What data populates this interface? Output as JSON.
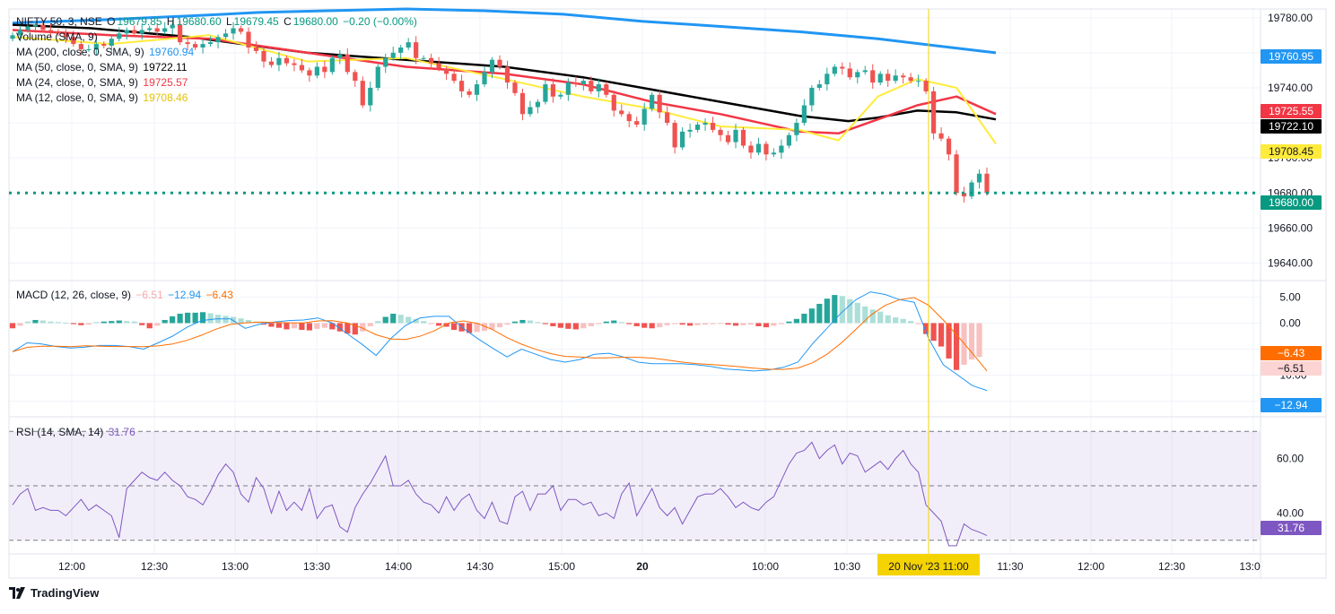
{
  "colors": {
    "up": "#26a69a",
    "down": "#ef5350",
    "ma200": "#2196f3",
    "ma50": "#000000",
    "ma24": "#f23645",
    "ma12": "#ffeb3b",
    "macd": "#2196f3",
    "signal": "#ff6d00",
    "rsi": "#7e57c2",
    "last": "#089981",
    "cursor": "#f5d300",
    "grid": "#f0f3fa"
  },
  "header": {
    "symbol": "NIFTY 50, 3, NSE",
    "o_label": "O",
    "o": "19679.85",
    "h_label": "H",
    "h": "19680.60",
    "l_label": "L",
    "l": "19679.45",
    "c_label": "C",
    "c": "19680.00",
    "chg": "−0.20 (−0.00%)"
  },
  "indicators": {
    "volume": "Volume (SMA, 9)",
    "ma200_label": "MA (200, close, 0, SMA, 9)",
    "ma200_value": "19760.94",
    "ma50_label": "MA (50, close, 0, SMA, 9)",
    "ma50_value": "19722.11",
    "ma24_label": "MA (24, close, 0, SMA, 9)",
    "ma24_value": "19725.57",
    "ma12_label": "MA (12, close, 0, SMA, 9)",
    "ma12_value": "19708.46",
    "macd_label": "MACD (12, 26, close, 9)",
    "macd_hist": "−6.51",
    "macd_macd": "−12.94",
    "macd_signal": "−6.43",
    "rsi_label": "RSI (14, SMA, 14)",
    "rsi_value": "31.76"
  },
  "brand": "TradingView",
  "chart_data": {
    "type": "candlestick",
    "symbol": "NIFTY 50",
    "interval": "3",
    "exchange": "NSE",
    "price_axis": {
      "ylim": [
        19630,
        19785
      ],
      "ticks": [
        "19780.00",
        "19740.00",
        "19700.00",
        "19680.00",
        "19660.00",
        "19640.00"
      ]
    },
    "time_axis": {
      "ticks": [
        "12:00",
        "12:30",
        "13:00",
        "13:30",
        "14:00",
        "14:30",
        "15:00",
        "20",
        "10:00",
        "10:30",
        "11:00",
        "11:30",
        "12:00",
        "12:30",
        "13:0"
      ],
      "cursor_label": "20 Nov '23  11:00"
    },
    "price_labels": {
      "ma200": "19760.95",
      "ma24": "19725.55",
      "ma50": "19722.10",
      "ma12": "19708.45",
      "last": "19680.00"
    },
    "last_price": 19680.0,
    "close": [
      19770,
      19773,
      19775,
      19776,
      19773,
      19772,
      19771,
      19769,
      19765,
      19762,
      19762,
      19765,
      19764,
      19768,
      19771,
      19773,
      19771,
      19773,
      19774,
      19772,
      19774,
      19776,
      19766,
      19765,
      19763,
      19765,
      19766,
      19769,
      19771,
      19774,
      19772,
      19763,
      19761,
      19755,
      19753,
      19757,
      19754,
      19753,
      19750,
      19747,
      19752,
      19749,
      19757,
      19759,
      19749,
      19744,
      19730,
      19740,
      19752,
      19757,
      19760,
      19763,
      19766,
      19757,
      19757,
      19754,
      19751,
      19748,
      19744,
      19738,
      19736,
      19742,
      19749,
      19756,
      19752,
      19743,
      19737,
      19725,
      19729,
      19732,
      19742,
      19735,
      19736,
      19743,
      19742,
      19744,
      19738,
      19742,
      19736,
      19727,
      19725,
      19721,
      19719,
      19728,
      19736,
      19726,
      19720,
      19706,
      19715,
      19716,
      19719,
      19720,
      19716,
      19713,
      19709,
      19716,
      19707,
      19703,
      19708,
      19702,
      19703,
      19707,
      19713,
      19720,
      19730,
      19740,
      19742,
      19748,
      19752,
      19751,
      19746,
      19749,
      19750,
      19743,
      19748,
      19744,
      19747,
      19746,
      19744,
      19744,
      19738,
      19714,
      19711,
      19702,
      19680,
      19678,
      19686,
      19691,
      19680
    ],
    "moving_averages": [
      {
        "name": "MA 200",
        "label": "19760.94",
        "points": [
          [
            0,
            19777
          ],
          [
            0.1,
            19779
          ],
          [
            0.18,
            19781
          ],
          [
            0.25,
            19783
          ],
          [
            0.32,
            19784
          ],
          [
            0.4,
            19785
          ],
          [
            0.48,
            19784
          ],
          [
            0.56,
            19782
          ],
          [
            0.64,
            19778
          ],
          [
            0.72,
            19775
          ],
          [
            0.8,
            19772
          ],
          [
            0.88,
            19768
          ],
          [
            0.94,
            19764
          ],
          [
            1,
            19760
          ]
        ]
      },
      {
        "name": "MA 50",
        "label": "19722.11",
        "points": [
          [
            0,
            19776
          ],
          [
            0.08,
            19774
          ],
          [
            0.18,
            19769
          ],
          [
            0.3,
            19760
          ],
          [
            0.4,
            19756
          ],
          [
            0.5,
            19752
          ],
          [
            0.58,
            19746
          ],
          [
            0.65,
            19739
          ],
          [
            0.72,
            19732
          ],
          [
            0.8,
            19724
          ],
          [
            0.85,
            19721
          ],
          [
            0.88,
            19723
          ],
          [
            0.92,
            19727
          ],
          [
            0.96,
            19726
          ],
          [
            1,
            19722
          ]
        ]
      },
      {
        "name": "MA 24",
        "label": "19725.57",
        "points": [
          [
            0,
            19773
          ],
          [
            0.1,
            19770
          ],
          [
            0.2,
            19768
          ],
          [
            0.3,
            19760
          ],
          [
            0.4,
            19752
          ],
          [
            0.5,
            19748
          ],
          [
            0.58,
            19742
          ],
          [
            0.65,
            19732
          ],
          [
            0.72,
            19725
          ],
          [
            0.8,
            19715
          ],
          [
            0.84,
            19714
          ],
          [
            0.88,
            19722
          ],
          [
            0.92,
            19730
          ],
          [
            0.96,
            19735
          ],
          [
            1,
            19725
          ]
        ]
      },
      {
        "name": "MA 12",
        "label": "19708.46",
        "points": [
          [
            0,
            19769
          ],
          [
            0.1,
            19765
          ],
          [
            0.2,
            19770
          ],
          [
            0.3,
            19755
          ],
          [
            0.4,
            19757
          ],
          [
            0.5,
            19745
          ],
          [
            0.58,
            19735
          ],
          [
            0.65,
            19728
          ],
          [
            0.72,
            19718
          ],
          [
            0.8,
            19716
          ],
          [
            0.84,
            19710
          ],
          [
            0.88,
            19735
          ],
          [
            0.92,
            19745
          ],
          [
            0.96,
            19740
          ],
          [
            1,
            19708
          ]
        ]
      }
    ],
    "macd": {
      "ylim": [
        -18,
        8
      ],
      "ticks": [
        "5.00",
        "0.00",
        "−10.00"
      ],
      "labels": {
        "signal": "−6.43",
        "hist": "−6.51",
        "macd": "−12.94"
      },
      "histogram": [
        -1,
        -0.5,
        0.3,
        0.6,
        0.5,
        0.3,
        0.2,
        0.1,
        -0.2,
        -0.4,
        -0.3,
        0.2,
        0.3,
        0.4,
        0.5,
        0.4,
        0.3,
        -0.4,
        -1.0,
        -0.5,
        0.6,
        1.3,
        1.8,
        2.0,
        2.0,
        2.1,
        1.9,
        1.6,
        1.4,
        1.2,
        0.9,
        0.6,
        0.3,
        -0.3,
        -0.7,
        -0.9,
        -1.2,
        -1.0,
        -1.3,
        -1.4,
        -1.1,
        -0.9,
        -1.2,
        -1.6,
        -2.0,
        -2.2,
        -1.6,
        -0.6,
        0.4,
        1.2,
        1.8,
        1.6,
        1.2,
        0.8,
        0.4,
        -0.2,
        -0.5,
        -0.7,
        -1.3,
        -1.6,
        -1.9,
        -1.7,
        -1.5,
        -1.2,
        -0.8,
        -0.3,
        0.3,
        0.6,
        0.5,
        0.2,
        -0.2,
        -0.6,
        -0.9,
        -1.1,
        -1.2,
        -1.0,
        -0.6,
        -0.2,
        0.3,
        0.5,
        0.2,
        -0.2,
        -0.6,
        -0.9,
        -1.0,
        -0.8,
        -0.4,
        -0.2,
        -0.3,
        -0.5,
        -0.4,
        -0.3,
        -0.2,
        -0.1,
        -0.3,
        -0.5,
        -0.4,
        -0.3,
        -0.6,
        -0.8,
        -0.5,
        -0.2,
        0.3,
        0.8,
        1.8,
        2.8,
        3.7,
        4.7,
        5.4,
        5.2,
        4.6,
        3.9,
        3.2,
        2.6,
        2.2,
        1.5,
        1.1,
        0.8,
        0.4,
        -0.2,
        -2.1,
        -3.4,
        -4.5,
        -6.8,
        -9.0,
        -8.0,
        -7.0,
        -6.51
      ],
      "macd_line": [
        -5.5,
        -3.8,
        -4.0,
        -4.5,
        -4.8,
        -4.6,
        -4.3,
        -4.3,
        -4.5,
        -5.0,
        -3.8,
        -2.5,
        -0.8,
        0.5,
        0.8,
        0.8,
        -1.0,
        -0.2,
        0.2,
        0.5,
        0.6,
        1.0,
        0.0,
        -2.0,
        -4.0,
        -6.2,
        -3.0,
        -0.5,
        1.0,
        1.3,
        1.3,
        -1.0,
        -3.0,
        -4.8,
        -6.5,
        -5.0,
        -6.0,
        -7.0,
        -7.5,
        -7.0,
        -6.0,
        -5.8,
        -6.5,
        -7.5,
        -7.8,
        -7.8,
        -7.8,
        -8.0,
        -8.3,
        -8.8,
        -9.0,
        -9.2,
        -9.0,
        -8.5,
        -7.5,
        -4.0,
        -1.0,
        2.0,
        4.5,
        6.0,
        5.5,
        4.5,
        4.0,
        -3.0,
        -8.0,
        -10.0,
        -12.0,
        -12.94
      ]
    },
    "rsi": {
      "ylim": [
        25,
        75
      ],
      "band": [
        30,
        70
      ],
      "midline": 50,
      "ticks": [
        "60.00",
        "40.00"
      ],
      "label": "31.76",
      "values": [
        43,
        47,
        49,
        41,
        42,
        41,
        41,
        39,
        42,
        45,
        41,
        43,
        41,
        39,
        31,
        49,
        52,
        55,
        53,
        52,
        55,
        52,
        50,
        46,
        45,
        43,
        48,
        54,
        58,
        55,
        47,
        44,
        53,
        49,
        40,
        48,
        41,
        44,
        41,
        49,
        38,
        42,
        43,
        35,
        33,
        42,
        47,
        51,
        56,
        61,
        50,
        50,
        52,
        47,
        44,
        43,
        40,
        46,
        41,
        45,
        47,
        41,
        38,
        44,
        37,
        36,
        46,
        48,
        41,
        47,
        47,
        50,
        41,
        45,
        45,
        43,
        44,
        39,
        40,
        38,
        47,
        51,
        39,
        44,
        49,
        42,
        39,
        42,
        36,
        41,
        46,
        47,
        47,
        49,
        46,
        42,
        44,
        42,
        41,
        44,
        46,
        52,
        58,
        62,
        63,
        66,
        60,
        63,
        65,
        58,
        62,
        61,
        55,
        57,
        59,
        56,
        60,
        63,
        58,
        55,
        43,
        40,
        37,
        28,
        28,
        36,
        34,
        33,
        31.76
      ]
    }
  }
}
